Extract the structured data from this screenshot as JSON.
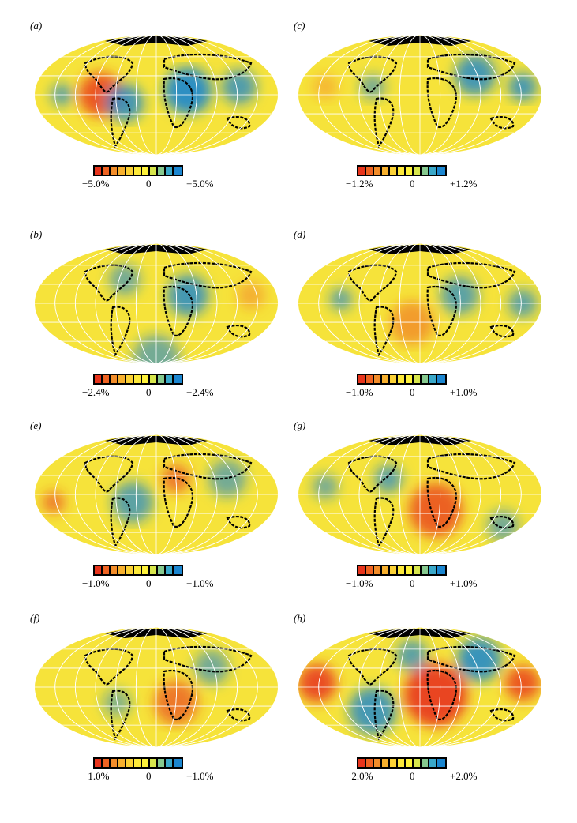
{
  "panels": [
    {
      "label": "(a)",
      "min": "−5.0%",
      "zero": "0",
      "max": "+5.0%"
    },
    {
      "label": "(c)",
      "min": "−1.2%",
      "zero": "0",
      "max": "+1.2%"
    },
    {
      "label": "(b)",
      "min": "−2.4%",
      "zero": "0",
      "max": "+2.4%"
    },
    {
      "label": "(d)",
      "min": "−1.0%",
      "zero": "0",
      "max": "+1.0%"
    },
    {
      "label": "(e)",
      "min": "−1.0%",
      "zero": "0",
      "max": "+1.0%"
    },
    {
      "label": "(g)",
      "min": "−1.0%",
      "zero": "0",
      "max": "+1.0%"
    },
    {
      "label": "(f)",
      "min": "−1.0%",
      "zero": "0",
      "max": "+1.0%"
    },
    {
      "label": "(h)",
      "min": "−2.0%",
      "zero": "0",
      "max": "+2.0%"
    }
  ],
  "colors": {
    "scale": [
      "#e8341c",
      "#ef6322",
      "#f38d2a",
      "#f7b02e",
      "#fbd135",
      "#fde93a",
      "#fef23c",
      "#d7e64c",
      "#86c98e",
      "#3aa8c9",
      "#1b86d0"
    ],
    "background": "#f6e33a",
    "continents": "#000000",
    "grid": "#ffffff"
  }
}
